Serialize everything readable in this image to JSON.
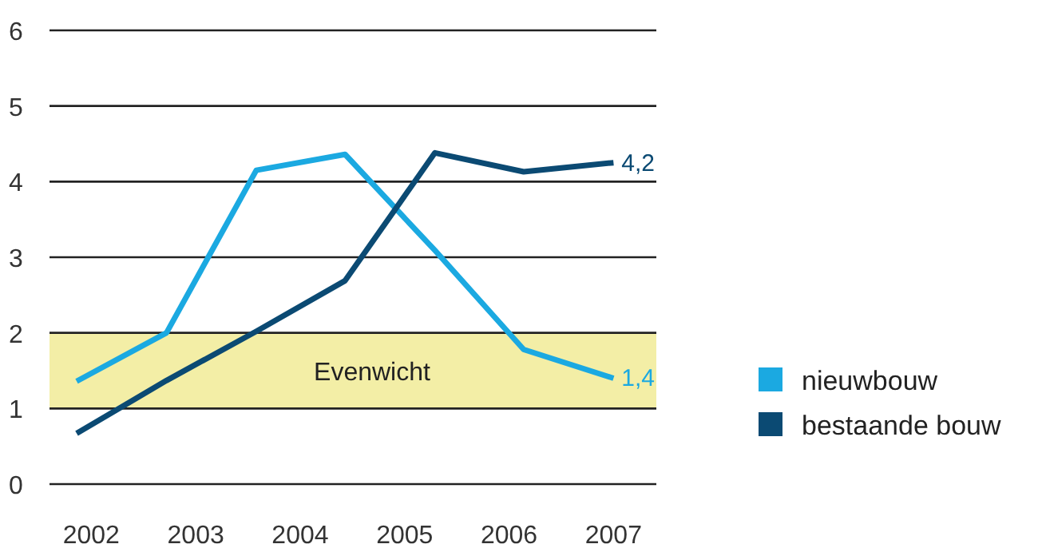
{
  "chart_data": {
    "type": "line",
    "x": [
      2001.86,
      2002.72,
      2003.58,
      2004.43,
      2005.29,
      2006.14,
      2007.0
    ],
    "xlim": [
      2001.6,
      2007.41
    ],
    "xticks": [
      2002,
      2003,
      2004,
      2005,
      2006,
      2007
    ],
    "ylim": [
      0,
      6
    ],
    "yticks": [
      0,
      1,
      2,
      3,
      4,
      5,
      6
    ],
    "grid": "y",
    "legend": "bottom right",
    "line_style": "solid",
    "marker": "none",
    "series": [
      {
        "name": "nieuwbouw",
        "color": "#1ba9e1",
        "values": [
          1.36,
          2.0,
          4.15,
          4.36,
          3.09,
          1.78,
          1.4
        ],
        "value_labels": [
          null,
          null,
          null,
          null,
          null,
          null,
          "1,4"
        ]
      },
      {
        "name": "bestaande bouw",
        "color": "#0b4a73",
        "values": [
          0.67,
          1.37,
          2.02,
          2.69,
          4.38,
          4.13,
          4.25
        ],
        "value_labels": [
          null,
          null,
          null,
          null,
          null,
          null,
          "4,2"
        ]
      }
    ],
    "bands": [
      {
        "axis": "y",
        "from": 1,
        "to": 2,
        "label": "Evenwicht",
        "color": "#f3eea6"
      }
    ]
  }
}
